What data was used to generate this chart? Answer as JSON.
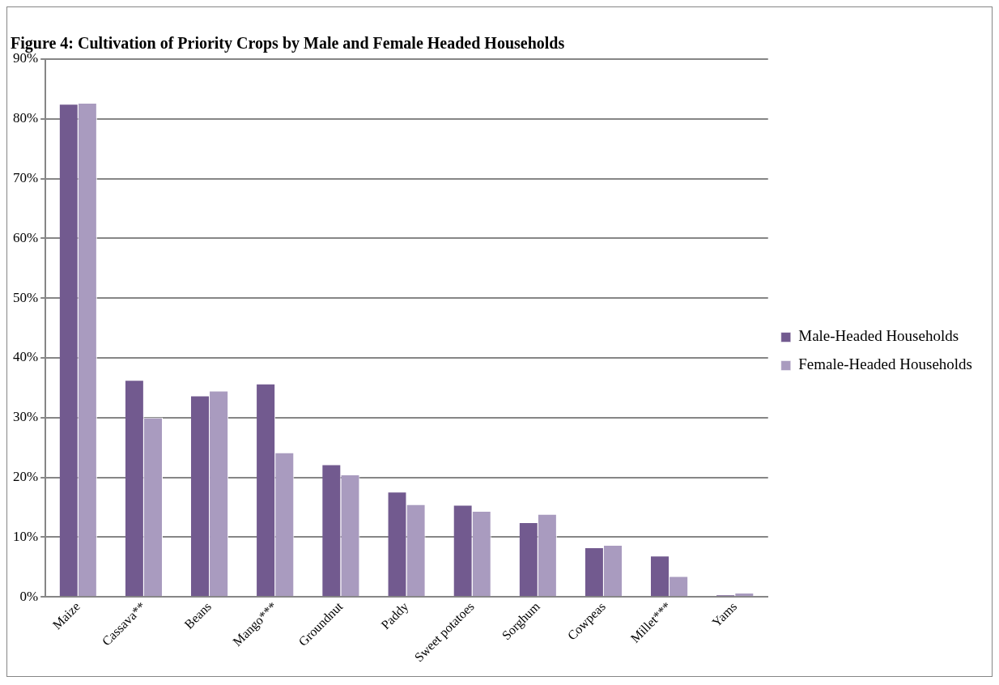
{
  "chart_data": {
    "type": "bar",
    "title": "Figure 4: Cultivation of Priority Crops by Male and Female Headed Households",
    "categories": [
      "Maize",
      "Cassava**",
      "Beans",
      "Mango***",
      "Groundnut",
      "Paddy",
      "Sweet potatoes",
      "Sorghum",
      "Cowpeas",
      "Millet***",
      "Yams"
    ],
    "series": [
      {
        "name": "Male-Headed Households",
        "color": "#725a8f",
        "values": [
          82.5,
          36.3,
          33.7,
          35.7,
          22.2,
          17.6,
          15.4,
          12.5,
          8.3,
          6.9,
          0.4
        ]
      },
      {
        "name": "Female-Headed Households",
        "color": "#a99bbf",
        "values": [
          82.7,
          30.0,
          34.5,
          24.2,
          20.5,
          15.5,
          14.4,
          13.9,
          8.7,
          3.5,
          0.7
        ]
      }
    ],
    "ylim": [
      0,
      90
    ],
    "yticks": [
      {
        "value": 0,
        "label": "0%"
      },
      {
        "value": 10,
        "label": "10%"
      },
      {
        "value": 20,
        "label": "20%"
      },
      {
        "value": 30,
        "label": "30%"
      },
      {
        "value": 40,
        "label": "40%"
      },
      {
        "value": 50,
        "label": "50%"
      },
      {
        "value": 60,
        "label": "60%"
      },
      {
        "value": 70,
        "label": "70%"
      },
      {
        "value": 80,
        "label": "80%"
      },
      {
        "value": 90,
        "label": "90%"
      }
    ],
    "grid": "y",
    "legend": "right"
  }
}
